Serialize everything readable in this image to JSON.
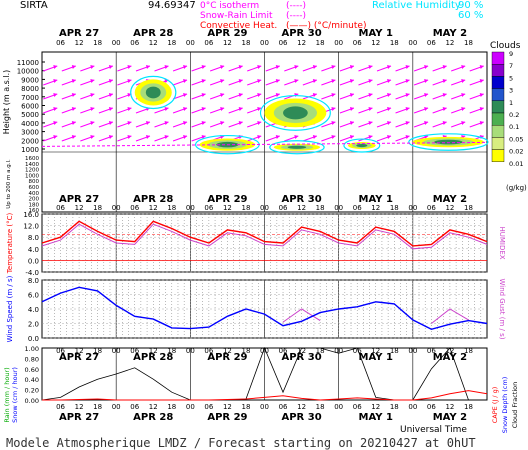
{
  "header": {
    "site": "SIRTA",
    "coords": "94.69347",
    "legend_lines": [
      {
        "label": "0°C isotherm",
        "symbol": "(----)",
        "color": "#ff00ff"
      },
      {
        "label": "Snow-Rain Limit",
        "symbol": "(----)",
        "color": "#ff00ff"
      },
      {
        "label": "Convective Heat.",
        "symbol": "(——) (°C/minute)",
        "color": "#ff0000"
      }
    ],
    "rh_label": "Relative Humidity",
    "rh_values": [
      "90 %",
      "60 %"
    ],
    "rh_color": "#00e5ff"
  },
  "time_axis": {
    "days": [
      "APR 27",
      "APR 28",
      "APR 29",
      "APR 30",
      "MAY  1",
      "MAY  2"
    ],
    "hours": [
      "06",
      "12",
      "18",
      "00",
      "06",
      "12",
      "18",
      "00",
      "06",
      "12",
      "18",
      "00",
      "06",
      "12",
      "18",
      "00",
      "06",
      "12",
      "18",
      "00",
      "06",
      "12",
      "18"
    ],
    "xlabel": "Universal Time"
  },
  "colors": {
    "temperature": "#ff0000",
    "humidex": "#cc44cc",
    "wind": "#0000ff",
    "gust": "#cc44cc",
    "rain": "#000000",
    "cape": "#ff0000",
    "cloud_scale": [
      "#ffff00",
      "#d8ee80",
      "#a8dd7a",
      "#4caf50",
      "#2e8b57",
      "#2255cc",
      "#0000cc",
      "#8800cc",
      "#cc00ff"
    ]
  },
  "cloud_legend": {
    "title": "Clouds",
    "ticks": [
      "9",
      "7",
      "5",
      "3",
      "1",
      "0.2",
      "0.1",
      "0.05",
      "0.02",
      "0.01"
    ],
    "unit": "(g/kg)"
  },
  "chart_data": [
    {
      "type": "heatmap",
      "title": "Clouds",
      "ylabel": "Height (m a.s.l.)",
      "ylabel_low": "Up to 200 m a.g.l.",
      "ylim": [
        0,
        12000
      ],
      "y_ticks_upper": [
        "11000",
        "10000",
        "9000",
        "8000",
        "7000",
        "6000",
        "5000",
        "4000",
        "3000",
        "2000",
        "1000"
      ],
      "y_ticks_lower": [
        "1600",
        "1400",
        "1200",
        "1000",
        "800",
        "600",
        "400",
        "200",
        "180",
        "160"
      ],
      "cloud_areas": [
        {
          "day": "APR 28",
          "hour_from": 6,
          "hour_to": 18,
          "height_from": 6000,
          "height_to": 9000
        },
        {
          "day": "APR 29",
          "hour_from": 3,
          "hour_to": 21,
          "height_from": 800,
          "height_to": 2200
        },
        {
          "day": "APR 30",
          "hour_from": 0,
          "hour_to": 20,
          "height_from": 3500,
          "height_to": 6800
        },
        {
          "day": "APR 30",
          "hour_from": 3,
          "hour_to": 18,
          "height_from": 800,
          "height_to": 1600
        },
        {
          "day": "MAY  1",
          "hour_from": 3,
          "hour_to": 12,
          "height_from": 1000,
          "height_to": 1800
        },
        {
          "day": "MAY  2",
          "hour_from": 0,
          "hour_to": 23,
          "height_from": 1200,
          "height_to": 2400
        }
      ]
    },
    {
      "type": "line",
      "title": "Temperature",
      "ylabel": "Temperature (°C)",
      "ylabel_right": "HUMIDEX",
      "ylim": [
        -4,
        16
      ],
      "y_ticks": [
        "16.0",
        "12.0",
        "8.0",
        "4.0",
        "0.0",
        "-4.0"
      ],
      "x_hours": [
        0,
        6,
        12,
        18,
        24,
        30,
        36,
        42,
        48,
        54,
        60,
        66,
        72,
        78,
        84,
        90,
        96,
        102,
        108,
        114,
        120,
        126,
        132,
        138,
        144
      ],
      "series": [
        {
          "name": "Temperature",
          "values": [
            6,
            8,
            13.5,
            10,
            7,
            6.5,
            13.5,
            11,
            8,
            6,
            10.5,
            9.5,
            6.5,
            6,
            11.5,
            10,
            7,
            6,
            11.5,
            10,
            5,
            5.5,
            10.5,
            9,
            6.5
          ]
        },
        {
          "name": "HUMIDEX",
          "values": [
            5,
            7,
            12.5,
            9,
            6,
            5.5,
            12.5,
            10,
            7,
            5,
            9.5,
            8.5,
            5.5,
            5,
            10.5,
            9,
            6,
            5,
            10.5,
            9,
            4,
            4.5,
            9.5,
            8,
            5.5
          ]
        }
      ]
    },
    {
      "type": "line",
      "title": "Wind",
      "ylabel": "Wind Speed (m / s)",
      "ylabel_right": "Wind Gust (m / s)",
      "ylim": [
        0,
        8
      ],
      "y_ticks": [
        "8.0",
        "6.0",
        "4.0",
        "2.0",
        "0.0"
      ],
      "x_hours": [
        0,
        6,
        12,
        18,
        24,
        30,
        36,
        42,
        48,
        54,
        60,
        66,
        72,
        78,
        84,
        90,
        96,
        102,
        108,
        114,
        120,
        126,
        132,
        138,
        144
      ],
      "series": [
        {
          "name": "Wind Speed",
          "values": [
            5,
            6.2,
            7,
            6.5,
            4.5,
            3,
            2.6,
            1.4,
            1.3,
            1.5,
            3,
            4,
            3.3,
            1.7,
            2.3,
            3.5,
            4,
            4.3,
            5,
            4.7,
            2.5,
            1.2,
            1.9,
            2.4,
            2
          ]
        },
        {
          "name": "Wind Gust",
          "values": [
            null,
            null,
            null,
            null,
            null,
            null,
            null,
            null,
            null,
            null,
            null,
            null,
            null,
            2.2,
            4.0,
            2.4,
            null,
            null,
            null,
            null,
            null,
            2.0,
            4.0,
            2.5,
            null
          ]
        }
      ]
    },
    {
      "type": "line",
      "title": "Rain / Snow",
      "ylabel": "Rain (mm / hour)",
      "ylabel2": "Snow (cm / hour)",
      "ylabel_right": "CAPE (J / g)",
      "ylabel_right2": "Snow Depth (cm)",
      "ylabel_right3": "Cloud Fraction",
      "ylim": [
        0,
        1
      ],
      "y_ticks": [
        "1.00",
        "0.80",
        "0.60",
        "0.40",
        "0.20",
        "0.00"
      ],
      "x_hours": [
        0,
        6,
        12,
        18,
        24,
        30,
        36,
        42,
        48,
        54,
        60,
        66,
        72,
        78,
        84,
        90,
        96,
        102,
        108,
        114,
        120,
        126,
        132,
        138,
        144
      ],
      "series": [
        {
          "name": "Cloud Fraction",
          "values": [
            0,
            0.05,
            0.25,
            0.4,
            0.5,
            0.62,
            0.4,
            0.15,
            0,
            0,
            0,
            0.02,
            1,
            0.15,
            1,
            1,
            0.9,
            1,
            0.05,
            0,
            0,
            0.6,
            1,
            0,
            0
          ]
        },
        {
          "name": "CAPE",
          "values": [
            0,
            0,
            0.01,
            0.02,
            0,
            0,
            0,
            0,
            0,
            0,
            0.01,
            0.02,
            0.05,
            0.08,
            0.03,
            0,
            0.02,
            0.04,
            0.02,
            0,
            0,
            0.04,
            0.12,
            0.18,
            0.12
          ]
        }
      ]
    }
  ],
  "footer": {
    "text": "Modele Atmospherique LMDZ / Forecast starting on 20210427 at 0hUT"
  }
}
